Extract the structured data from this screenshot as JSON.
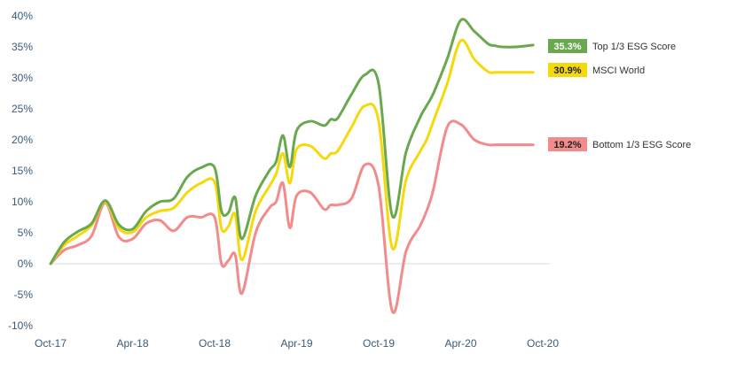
{
  "chart_data": {
    "type": "line",
    "title": "",
    "xlabel": "",
    "ylabel": "",
    "ylim": [
      -0.1,
      0.4
    ],
    "y_ticks": [
      "40%",
      "35%",
      "30%",
      "25%",
      "20%",
      "15%",
      "10%",
      "5%",
      "0%",
      "-5%",
      "-10%"
    ],
    "x_ticks": [
      "Oct-17",
      "Apr-18",
      "Oct-18",
      "Apr-19",
      "Oct-19",
      "Apr-20",
      "Oct-20"
    ],
    "x_range": [
      0,
      36
    ],
    "grid": false,
    "zero_line": true,
    "legend": "end-of-line labels",
    "series": [
      {
        "name": "Top 1/3 ESG Score",
        "label": "35.3%",
        "color": "#6aa84f",
        "label_bg": "#6aa84f",
        "label_fg": "#ffffff",
        "x": [
          0,
          1,
          2,
          3,
          4,
          5,
          6,
          7,
          8,
          9,
          10,
          11,
          12,
          12.5,
          13,
          13.5,
          14,
          15,
          16,
          16.5,
          17,
          17.5,
          18,
          19,
          20,
          20.5,
          21,
          22,
          23,
          24,
          25,
          26,
          27,
          27.5,
          28,
          29,
          30,
          31,
          32,
          32.5,
          33,
          34,
          35.3
        ],
        "y": [
          0,
          0.035,
          0.052,
          0.065,
          0.102,
          0.063,
          0.056,
          0.085,
          0.1,
          0.105,
          0.14,
          0.155,
          0.155,
          0.085,
          0.082,
          0.107,
          0.04,
          0.11,
          0.15,
          0.165,
          0.207,
          0.156,
          0.215,
          0.23,
          0.223,
          0.233,
          0.235,
          0.273,
          0.305,
          0.29,
          0.077,
          0.18,
          0.235,
          0.255,
          0.275,
          0.33,
          0.393,
          0.375,
          0.355,
          0.352,
          0.35,
          0.35,
          0.353
        ]
      },
      {
        "name": "MSCI World",
        "label": "30.9%",
        "color": "#f5d90a",
        "label_bg": "#f5d90a",
        "label_fg": "#222222",
        "x": [
          0,
          1,
          2,
          3,
          4,
          5,
          6,
          7,
          8,
          9,
          10,
          11,
          12,
          12.5,
          13,
          13.5,
          14,
          15,
          16,
          16.5,
          17,
          17.5,
          18,
          19,
          20,
          20.5,
          21,
          22,
          23,
          24,
          25,
          26,
          27,
          27.5,
          28,
          29,
          30,
          31,
          32,
          32.5,
          33,
          34,
          35.3
        ],
        "y": [
          0,
          0.03,
          0.045,
          0.062,
          0.1,
          0.057,
          0.051,
          0.075,
          0.085,
          0.09,
          0.115,
          0.13,
          0.132,
          0.057,
          0.06,
          0.08,
          0.006,
          0.085,
          0.125,
          0.145,
          0.178,
          0.13,
          0.185,
          0.19,
          0.17,
          0.178,
          0.182,
          0.22,
          0.255,
          0.23,
          0.025,
          0.135,
          0.18,
          0.2,
          0.23,
          0.29,
          0.36,
          0.33,
          0.31,
          0.309,
          0.309,
          0.309,
          0.309
        ]
      },
      {
        "name": "Bottom  1/3 ESG Score",
        "label": "19.2%",
        "color": "#f28b8b",
        "label_bg": "#f28b8b",
        "label_fg": "#222222",
        "x": [
          0,
          1,
          2,
          3,
          4,
          5,
          6,
          7,
          8,
          9,
          10,
          11,
          12,
          12.5,
          13,
          13.5,
          14,
          15,
          16,
          16.5,
          17,
          17.5,
          18,
          19,
          20,
          20.5,
          21,
          22,
          23,
          24,
          25,
          26,
          27,
          27.5,
          28,
          29,
          30,
          31,
          32,
          32.5,
          33,
          34,
          35.3
        ],
        "y": [
          0,
          0.022,
          0.03,
          0.045,
          0.098,
          0.043,
          0.04,
          0.065,
          0.07,
          0.053,
          0.075,
          0.075,
          0.075,
          0.0,
          0.005,
          0.015,
          -0.048,
          0.05,
          0.09,
          0.1,
          0.13,
          0.058,
          0.11,
          0.115,
          0.088,
          0.095,
          0.095,
          0.105,
          0.16,
          0.125,
          -0.077,
          0.02,
          0.06,
          0.085,
          0.12,
          0.22,
          0.225,
          0.2,
          0.192,
          0.192,
          0.192,
          0.192,
          0.192
        ]
      }
    ]
  }
}
